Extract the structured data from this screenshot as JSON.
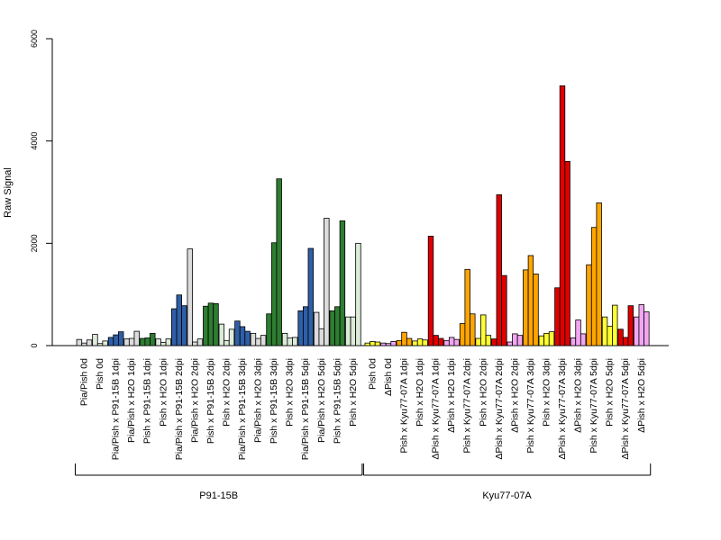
{
  "chart_data": {
    "type": "bar",
    "title": "",
    "xlabel": "",
    "ylabel": "Raw Signal",
    "ylim": [
      0,
      6000
    ],
    "yticks": [
      "0",
      "2000",
      "4000",
      "6000"
    ],
    "grid": false,
    "colors": {
      "light_gray": "#dcdcdc",
      "light_green": "#dcebd9",
      "steel_blue": "#2f5fa7",
      "green": "#2e7d32",
      "light_blue": "#d7e3f0",
      "yellow": "#ffff33",
      "pink": "#f2a6f2",
      "orange": "#ffa500",
      "red": "#e00000"
    },
    "groups": [
      {
        "label": "P91-15B",
        "categories": [
          {
            "label": "Pia/Pish 0d",
            "color": "light_gray",
            "values": [
              120,
              50,
              110
            ]
          },
          {
            "label": "Pish 0d",
            "color": "light_green",
            "values": [
              220,
              40,
              90
            ]
          },
          {
            "label": "Pia/Pish x P91-15B 1dpi",
            "color": "steel_blue",
            "values": [
              160,
              210,
              270
            ]
          },
          {
            "label": "Pia/Pish x H2O 1dpi",
            "color": "light_gray",
            "values": [
              130,
              140,
              280
            ]
          },
          {
            "label": "Pish x P91-15B 1dpi",
            "color": "green",
            "values": [
              140,
              150,
              240
            ]
          },
          {
            "label": "Pish x H2O 1dpi",
            "color": "light_green",
            "values": [
              130,
              60,
              130
            ]
          },
          {
            "label": "Pia/Pish x P91-15B 2dpi",
            "color": "steel_blue",
            "values": [
              720,
              990,
              780
            ]
          },
          {
            "label": "Pia/Pish x H2O 2dpi",
            "color": "light_gray",
            "values": [
              1890,
              70,
              130
            ]
          },
          {
            "label": "Pish x P91-15B 2dpi",
            "color": "green",
            "values": [
              770,
              830,
              820
            ]
          },
          {
            "label": "Pish x H2O 2dpi",
            "color": "light_green",
            "values": [
              420,
              100,
              320
            ]
          },
          {
            "label": "Pia/Pish x P91-15B 3dpi",
            "color": "steel_blue",
            "values": [
              480,
              370,
              280
            ]
          },
          {
            "label": "Pia/Pish x H2O 3dpi",
            "color": "light_gray",
            "values": [
              240,
              140,
              200
            ]
          },
          {
            "label": "Pish x P91-15B 3dpi",
            "color": "green",
            "values": [
              620,
              2010,
              3260
            ]
          },
          {
            "label": "Pish x H2O 3dpi",
            "color": "light_green",
            "values": [
              240,
              150,
              160
            ]
          },
          {
            "label": "Pia/Pish x P91-15B 5dpi",
            "color": "steel_blue",
            "values": [
              680,
              760,
              1900
            ]
          },
          {
            "label": "Pia/Pish x H2O 5dpi",
            "color": "light_gray",
            "values": [
              650,
              330,
              2490
            ]
          },
          {
            "label": "Pish x P91-15B 5dpi",
            "color": "green",
            "values": [
              680,
              760,
              2440
            ]
          },
          {
            "label": "Pish x H2O 5dpi",
            "color": "light_green",
            "values": [
              560,
              560,
              2000
            ]
          }
        ]
      },
      {
        "label": "Kyu77-07A",
        "categories": [
          {
            "label": "Pish 0d",
            "color": "yellow",
            "values": [
              50,
              80,
              70
            ]
          },
          {
            "label": "ΔPish 0d",
            "color": "pink",
            "values": [
              50,
              40,
              80
            ]
          },
          {
            "label": "Pish x Kyu77-07A 1dpi",
            "color": "orange",
            "values": [
              100,
              260,
              140
            ]
          },
          {
            "label": "Pish x H2O 1dpi",
            "color": "yellow",
            "values": [
              90,
              130,
              110
            ]
          },
          {
            "label": "ΔPish x Kyu77-07A 1dpi",
            "color": "red",
            "values": [
              2140,
              200,
              140
            ]
          },
          {
            "label": "ΔPish x H2O 1dpi",
            "color": "pink",
            "values": [
              100,
              160,
              120
            ]
          },
          {
            "label": "Pish x Kyu77-07A 2dpi",
            "color": "orange",
            "values": [
              430,
              1490,
              620
            ]
          },
          {
            "label": "Pish x H2O 2dpi",
            "color": "yellow",
            "values": [
              140,
              600,
              200
            ]
          },
          {
            "label": "ΔPish x Kyu77-07A 2dpi",
            "color": "red",
            "values": [
              130,
              2950,
              1370
            ]
          },
          {
            "label": "ΔPish x H2O 2dpi",
            "color": "pink",
            "values": [
              70,
              230,
              200
            ]
          },
          {
            "label": "Pish x Kyu77-07A 3dpi",
            "color": "orange",
            "values": [
              1480,
              1760,
              1400
            ]
          },
          {
            "label": "Pish x H2O 3dpi",
            "color": "yellow",
            "values": [
              190,
              240,
              270
            ]
          },
          {
            "label": "ΔPish x Kyu77-07A 3dpi",
            "color": "red",
            "values": [
              1130,
              5080,
              3600
            ]
          },
          {
            "label": "ΔPish x H2O 3dpi",
            "color": "pink",
            "values": [
              150,
              500,
              230
            ]
          },
          {
            "label": "Pish x Kyu77-07A 5dpi",
            "color": "orange",
            "values": [
              1580,
              2310,
              2790
            ]
          },
          {
            "label": "Pish x H2O 5dpi",
            "color": "yellow",
            "values": [
              560,
              380,
              790
            ]
          },
          {
            "label": "ΔPish x Kyu77-07A 5dpi",
            "color": "red",
            "values": [
              320,
              160,
              780
            ]
          },
          {
            "label": "ΔPish x H2O 5dpi",
            "color": "pink",
            "values": [
              560,
              800,
              660
            ]
          }
        ]
      }
    ]
  }
}
